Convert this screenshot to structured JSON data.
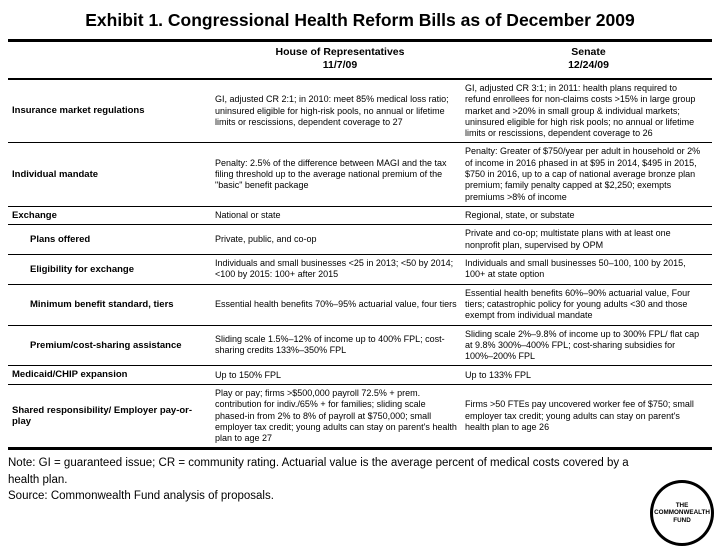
{
  "title": "Exhibit 1. Congressional Health Reform Bills as of December 2009",
  "colors": {
    "text": "#000000",
    "background": "#ffffff",
    "rule": "#000000"
  },
  "table": {
    "columns": [
      {
        "label": "House of Representatives",
        "date": "11/7/09"
      },
      {
        "label": "Senate",
        "date": "12/24/09"
      }
    ],
    "rows": [
      {
        "label": "Insurance market regulations",
        "indent": false,
        "house": "GI, adjusted CR 2:1; in 2010: meet 85% medical loss ratio; uninsured eligible for high-risk pools, no annual or lifetime limits or rescissions, dependent coverage to 27",
        "senate": "GI, adjusted CR 3:1; in 2011: health plans required to refund enrollees for non-claims costs >15% in large group market and >20% in small group & individual markets; uninsured eligible for high risk pools; no annual or lifetime limits or rescissions, dependent coverage to 26"
      },
      {
        "label": "Individual mandate",
        "indent": false,
        "house": "Penalty: 2.5% of the difference between MAGI and the tax filing threshold up to the average national premium of the \"basic\" benefit package",
        "senate": "Penalty: Greater of $750/year per adult in household or 2% of income in 2016 phased in at $95 in 2014, $495 in 2015, $750 in 2016, up to a cap of national average bronze plan premium; family penalty capped at $2,250; exempts premiums >8% of income"
      },
      {
        "label": "Exchange",
        "indent": false,
        "house": "National or state",
        "senate": "Regional, state, or substate"
      },
      {
        "label": "Plans offered",
        "indent": true,
        "house": "Private, public, and co-op",
        "senate": "Private and co-op; multistate plans with at least one nonprofit plan, supervised by OPM"
      },
      {
        "label": "Eligibility for exchange",
        "indent": true,
        "house": "Individuals and small businesses <25 in 2013; <50 by 2014; <100 by 2015: 100+ after 2015",
        "senate": "Individuals and small businesses 50–100, 100 by 2015, 100+ at state option"
      },
      {
        "label": "Minimum benefit standard, tiers",
        "indent": true,
        "house": "Essential health benefits 70%–95% actuarial value, four tiers",
        "senate": "Essential health benefits 60%–90% actuarial value, Four tiers; catastrophic policy for young adults <30 and those exempt from individual mandate"
      },
      {
        "label": "Premium/cost-sharing assistance",
        "indent": true,
        "house": "Sliding scale 1.5%–12% of income up to 400% FPL; cost-sharing credits 133%–350% FPL",
        "senate": "Sliding scale 2%–9.8% of income up to 300% FPL/ flat cap at 9.8% 300%–400% FPL; cost-sharing subsidies for 100%–200% FPL"
      },
      {
        "label": "Medicaid/CHIP expansion",
        "indent": false,
        "house": "Up to 150% FPL",
        "senate": "Up to 133% FPL"
      },
      {
        "label": "Shared responsibility/ Employer pay-or-play",
        "indent": false,
        "house": "Play or pay; firms >$500,000 payroll 72.5% + prem. contribution for indiv./65% + for families; sliding scale phased-in from 2% to 8% of payroll at $750,000; small employer tax credit; young adults can stay on parent's health plan to age 27",
        "senate": "Firms >50 FTEs pay uncovered worker fee of $750; small employer tax credit; young adults can stay on parent's health plan to age 26"
      }
    ]
  },
  "footer": {
    "note": "Note: GI = guaranteed issue; CR = community rating. Actuarial value is the average percent of medical costs covered by a health plan.",
    "source": "Source: Commonwealth Fund analysis of proposals."
  },
  "logo": {
    "lines": [
      "THE",
      "COMMONWEALTH",
      "FUND"
    ]
  }
}
